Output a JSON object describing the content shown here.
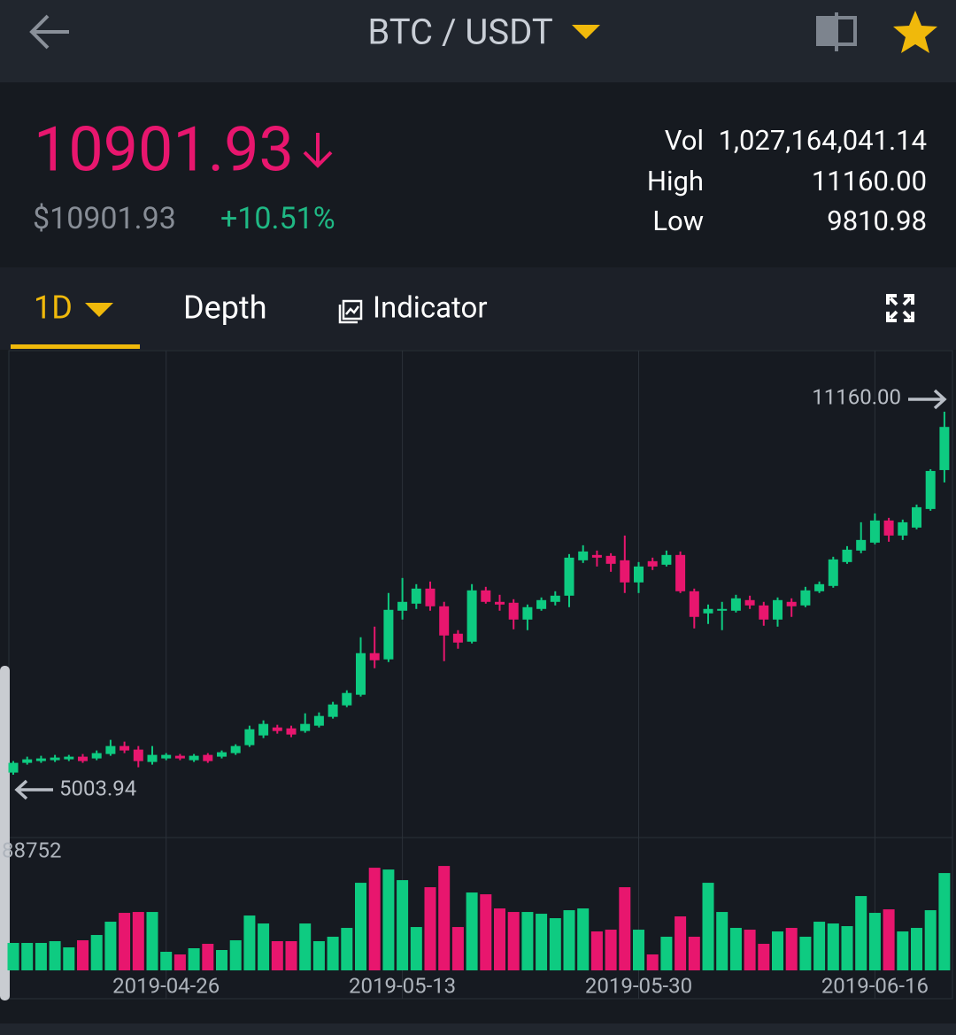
{
  "header": {
    "pair": "BTC / USDT"
  },
  "ticker": {
    "price": "10901.93",
    "price_usd": "$10901.93",
    "change": "+10.51%",
    "stats": [
      {
        "label": "Vol",
        "value": "1,027,164,041.14"
      },
      {
        "label": "High",
        "value": "11160.00"
      },
      {
        "label": "Low",
        "value": "9810.98"
      }
    ]
  },
  "tabs": [
    "1D",
    "Depth",
    "Indicator"
  ],
  "chart_data": {
    "type": "candlestick",
    "up_color": "#0ecb81",
    "down_color": "#e8166e",
    "categories": [
      null,
      null,
      null,
      null,
      null,
      null,
      null,
      null,
      null,
      null,
      null,
      "2019-04-26",
      null,
      null,
      null,
      null,
      null,
      null,
      null,
      null,
      null,
      null,
      null,
      null,
      null,
      null,
      null,
      null,
      "2019-05-13",
      null,
      null,
      null,
      null,
      null,
      null,
      null,
      null,
      null,
      null,
      null,
      null,
      null,
      null,
      null,
      null,
      "2019-05-30",
      null,
      null,
      null,
      null,
      null,
      null,
      null,
      null,
      null,
      null,
      null,
      null,
      null,
      null,
      null,
      null,
      "2019-06-16",
      null,
      null,
      null,
      null,
      null
    ],
    "open": [
      5040,
      5205,
      5235,
      5250,
      5265,
      5310,
      5280,
      5355,
      5490,
      5430,
      5220,
      5280,
      5325,
      5250,
      5340,
      5310,
      5370,
      5505,
      5670,
      5805,
      5790,
      5745,
      5835,
      5985,
      6180,
      6360,
      7065,
      6960,
      7785,
      7905,
      8160,
      7860,
      7395,
      7260,
      8130,
      7935,
      7920,
      7635,
      7815,
      7935,
      8040,
      8640,
      8730,
      8715,
      8640,
      8265,
      8625,
      8565,
      8730,
      8115,
      7740,
      7785,
      7785,
      7965,
      7875,
      7635,
      7935,
      7875,
      8115,
      8205,
      8610,
      8805,
      8940,
      9315,
      9060,
      9195,
      9510,
      10170
    ],
    "high": [
      5235,
      5310,
      5325,
      5340,
      5340,
      5355,
      5415,
      5595,
      5565,
      5490,
      5490,
      5370,
      5355,
      5355,
      5370,
      5415,
      5520,
      5835,
      5925,
      5850,
      5835,
      6045,
      6060,
      6240,
      6435,
      7335,
      7515,
      8085,
      8340,
      8235,
      8280,
      7935,
      7455,
      8235,
      8190,
      8055,
      7980,
      7890,
      8010,
      8115,
      8745,
      8895,
      8805,
      8760,
      9060,
      8610,
      8685,
      8805,
      8790,
      8160,
      7890,
      7935,
      8055,
      8040,
      7935,
      8010,
      7995,
      8190,
      8280,
      8700,
      8880,
      9285,
      9435,
      9360,
      9330,
      9585,
      10185,
      11160
    ],
    "low": [
      5003.94,
      5175,
      5205,
      5220,
      5235,
      5205,
      5250,
      5325,
      5370,
      5130,
      5175,
      5250,
      5250,
      5220,
      5205,
      5280,
      5340,
      5475,
      5625,
      5700,
      5640,
      5715,
      5805,
      5955,
      6150,
      6330,
      6810,
      6915,
      7635,
      7815,
      7785,
      6930,
      7140,
      7230,
      7905,
      7785,
      7470,
      7455,
      7785,
      7875,
      7845,
      8595,
      8535,
      8445,
      8085,
      8085,
      8475,
      8535,
      8085,
      7485,
      7560,
      7455,
      7755,
      7815,
      7530,
      7515,
      7680,
      7845,
      8085,
      8175,
      8580,
      8760,
      8910,
      8955,
      8985,
      9165,
      9480,
      9960
    ],
    "close": [
      5205,
      5265,
      5280,
      5295,
      5310,
      5235,
      5370,
      5490,
      5415,
      5235,
      5340,
      5340,
      5280,
      5325,
      5235,
      5385,
      5490,
      5775,
      5865,
      5745,
      5685,
      5865,
      6000,
      6195,
      6390,
      7065,
      6945,
      7800,
      7935,
      8160,
      7860,
      7365,
      7245,
      8130,
      7935,
      7890,
      7635,
      7845,
      7965,
      8040,
      8685,
      8790,
      8685,
      8580,
      8265,
      8535,
      8535,
      8730,
      8115,
      7680,
      7815,
      7815,
      7995,
      7875,
      7635,
      7965,
      7860,
      8130,
      8235,
      8655,
      8820,
      8985,
      9315,
      9060,
      9285,
      9540,
      10155,
      10901.93
    ],
    "volume": [
      20990,
      20990,
      20990,
      22340,
      17600,
      23020,
      27080,
      37240,
      44010,
      44680,
      44680,
      14220,
      12190,
      16930,
      20310,
      15570,
      23020,
      41970,
      35880,
      22340,
      22340,
      35880,
      22340,
      25730,
      32500,
      67020,
      78530,
      77180,
      69050,
      33170,
      63640,
      79890,
      33170,
      59580,
      58220,
      47390,
      44680,
      44680,
      43330,
      39940,
      46040,
      47390,
      29790,
      31140,
      63640,
      31140,
      12190,
      25730,
      41300,
      25730,
      67020,
      44680,
      32500,
      31140,
      20310,
      29790,
      32500,
      25730,
      37240,
      35880,
      33850,
      56870,
      44010,
      46710,
      29790,
      32500,
      46040,
      74470
    ],
    "ylim": [
      4028,
      12136
    ],
    "volume_ylim": [
      0,
      88752
    ],
    "volume_yticks": [
      88752
    ],
    "annotations": [
      {
        "text": "11160.00"
      },
      {
        "text": "5003.94"
      }
    ]
  }
}
